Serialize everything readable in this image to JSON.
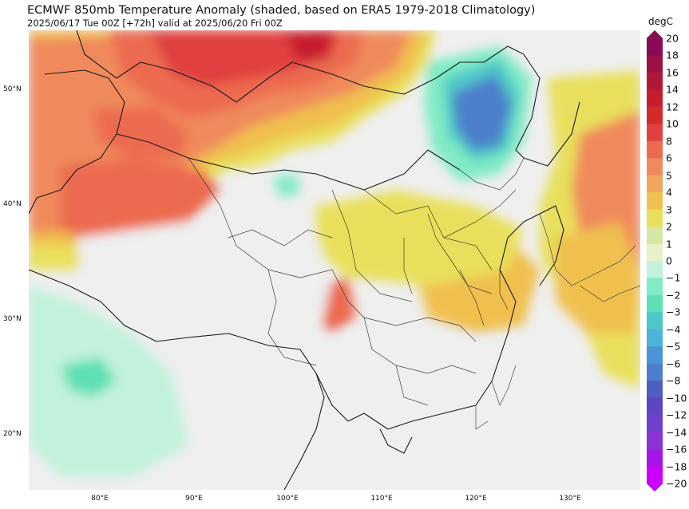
{
  "header": {
    "title": "ECMWF 850mb Temperature Anomaly (shaded, based on ERA5 1979-2018 Climatology)",
    "subtitle": "2025/06/17 Tue 00Z [+72h] valid at 2025/06/20 Fri 00Z"
  },
  "map": {
    "lat_labels": [
      "50°N",
      "40°N",
      "30°N",
      "20°N"
    ],
    "lon_labels": [
      "80°E",
      "90°E",
      "100°E",
      "110°E",
      "120°E",
      "130°E"
    ]
  },
  "colorbar": {
    "unit": "degC",
    "labels": [
      "20",
      "18",
      "16",
      "14",
      "12",
      "10",
      "8",
      "6",
      "5",
      "4",
      "3",
      "2",
      "1",
      "0",
      "−1",
      "−2",
      "−3",
      "−4",
      "−5",
      "−6",
      "−8",
      "−10",
      "−12",
      "−14",
      "−16",
      "−18",
      "−20"
    ],
    "colors": {
      "n20": "#cc00ff",
      "n18": "#a516e6",
      "n16": "#8a33d6",
      "n14": "#7040cc",
      "n12": "#5e45c4",
      "n10": "#4d5fbf",
      "n8": "#4d7fcc",
      "n6": "#4d94d6",
      "n5": "#4db3d9",
      "n4": "#4dc7c7",
      "n3": "#5ee0b2",
      "n2": "#80ebc4",
      "n1": "#c2f2dc",
      "zero": "#efefef",
      "p1": "#e8f2c8",
      "p2": "#d6e6a3",
      "p3": "#e8e05c",
      "p4": "#f0c050",
      "p5": "#f2a55c",
      "p6": "#f08a5c",
      "p8": "#ec6a50",
      "p10": "#e04040",
      "p12": "#d42a2a",
      "p14": "#c41e2e",
      "p16": "#b01836",
      "p18": "#9c1044",
      "p20": "#8a0a55"
    }
  }
}
